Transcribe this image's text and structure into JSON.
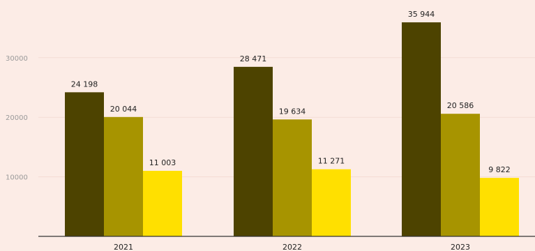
{
  "chart_data": {
    "type": "bar",
    "categories": [
      "2021",
      "2022",
      "2023"
    ],
    "series": [
      {
        "values": [
          24198,
          28471,
          35944
        ],
        "labels": [
          "24 198",
          "28 471",
          "35 944"
        ],
        "color": "#4d4300"
      },
      {
        "values": [
          20044,
          19634,
          20586
        ],
        "labels": [
          "20 044",
          "19 634",
          "20 586"
        ],
        "color": "#a79400"
      },
      {
        "values": [
          11003,
          11271,
          9822
        ],
        "labels": [
          "11 003",
          "11 271",
          "9 822"
        ],
        "color": "#ffe000"
      }
    ],
    "yticks": [
      10000,
      20000,
      30000
    ],
    "ytick_labels": [
      "10000",
      "20000",
      "30000"
    ],
    "ylim": [
      0,
      40000
    ],
    "grid": true,
    "background": "#fcece6",
    "gridline_color": "#f4dcd4",
    "axis_color": "#333333"
  }
}
